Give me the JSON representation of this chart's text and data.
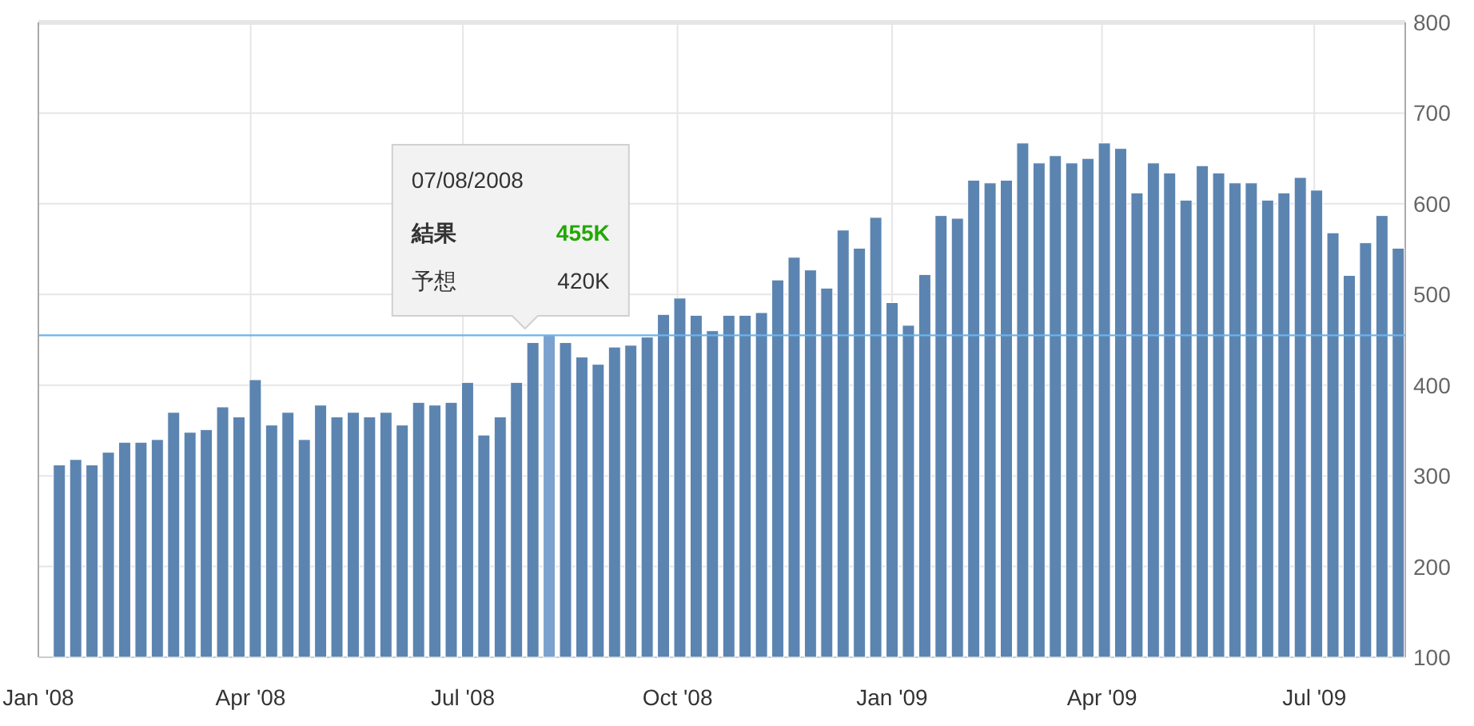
{
  "chart_data": {
    "type": "bar",
    "x": [
      "2008-01-10",
      "2008-01-17",
      "2008-01-24",
      "2008-01-31",
      "2008-02-07",
      "2008-02-14",
      "2008-02-21",
      "2008-02-28",
      "2008-03-06",
      "2008-03-13",
      "2008-03-20",
      "2008-03-27",
      "2008-04-03",
      "2008-04-10",
      "2008-04-17",
      "2008-04-24",
      "2008-05-01",
      "2008-05-08",
      "2008-05-15",
      "2008-05-22",
      "2008-05-29",
      "2008-06-05",
      "2008-06-12",
      "2008-06-19",
      "2008-06-26",
      "2008-07-03",
      "2008-07-10",
      "2008-07-17",
      "2008-07-24",
      "2008-07-31",
      "2008-08-07",
      "2008-08-14",
      "2008-08-21",
      "2008-08-28",
      "2008-09-04",
      "2008-09-11",
      "2008-09-18",
      "2008-09-25",
      "2008-10-02",
      "2008-10-09",
      "2008-10-16",
      "2008-10-23",
      "2008-10-30",
      "2008-11-06",
      "2008-11-13",
      "2008-11-20",
      "2008-11-27",
      "2008-12-04",
      "2008-12-11",
      "2008-12-18",
      "2008-12-25",
      "2009-01-01",
      "2009-01-08",
      "2009-01-15",
      "2009-01-22",
      "2009-01-29",
      "2009-02-05",
      "2009-02-12",
      "2009-02-19",
      "2009-02-26",
      "2009-03-05",
      "2009-03-12",
      "2009-03-19",
      "2009-03-26",
      "2009-04-02",
      "2009-04-09",
      "2009-04-16",
      "2009-04-23",
      "2009-04-30",
      "2009-05-07",
      "2009-05-14",
      "2009-05-21",
      "2009-05-28",
      "2009-06-04",
      "2009-06-11",
      "2009-06-18",
      "2009-06-25",
      "2009-07-02",
      "2009-07-09",
      "2009-07-16",
      "2009-07-23",
      "2009-07-30",
      "2009-08-06"
    ],
    "values": [
      312,
      318,
      312,
      326,
      337,
      337,
      340,
      370,
      348,
      351,
      376,
      365,
      406,
      356,
      370,
      340,
      378,
      365,
      370,
      365,
      370,
      356,
      381,
      378,
      381,
      403,
      345,
      365,
      403,
      447,
      455,
      447,
      431,
      423,
      442,
      444,
      453,
      478,
      496,
      477,
      460,
      477,
      477,
      480,
      516,
      541,
      527,
      507,
      571,
      551,
      585,
      491,
      466,
      522,
      587,
      584,
      626,
      623,
      626,
      667,
      645,
      653,
      645,
      650,
      667,
      661,
      612,
      645,
      634,
      604,
      642,
      634,
      623,
      623,
      604,
      612,
      629,
      615,
      568,
      521,
      557,
      587,
      551
    ],
    "colors": [
      "#5b84b1",
      "#5b84b1",
      "#5b84b1",
      "#5b84b1",
      "#5b84b1",
      "#5b84b1",
      "#5b84b1",
      "#5b84b1",
      "#5b84b1",
      "#5b84b1",
      "#5b84b1",
      "#5b84b1",
      "#5b84b1",
      "#5b84b1",
      "#5b84b1",
      "#5b84b1",
      "#5b84b1",
      "#5b84b1",
      "#5b84b1",
      "#5b84b1",
      "#5b84b1",
      "#5b84b1",
      "#5b84b1",
      "#5b84b1",
      "#5b84b1",
      "#5b84b1",
      "#5b84b1",
      "#5b84b1",
      "#5b84b1",
      "#5b84b1",
      "#7ba2cf",
      "#5b84b1",
      "#5b84b1",
      "#5b84b1",
      "#5b84b1",
      "#5b84b1",
      "#5b84b1",
      "#5b84b1",
      "#5b84b1",
      "#5b84b1",
      "#5b84b1",
      "#5b84b1",
      "#5b84b1",
      "#5b84b1",
      "#5b84b1",
      "#5b84b1",
      "#5b84b1",
      "#5b84b1",
      "#5b84b1",
      "#5b84b1",
      "#5b84b1",
      "#5b84b1",
      "#5b84b1",
      "#5b84b1",
      "#5b84b1",
      "#5b84b1",
      "#5b84b1",
      "#5b84b1",
      "#5b84b1",
      "#5b84b1",
      "#5b84b1",
      "#5b84b1",
      "#5b84b1",
      "#5b84b1",
      "#5b84b1",
      "#5b84b1",
      "#5b84b1",
      "#5b84b1",
      "#5b84b1",
      "#5b84b1",
      "#5b84b1",
      "#5b84b1",
      "#5b84b1",
      "#5b84b1",
      "#5b84b1",
      "#5b84b1",
      "#5b84b1",
      "#5b84b1",
      "#5b84b1",
      "#5b84b1",
      "#5b84b1",
      "#5b84b1",
      "#5b84b1"
    ],
    "xlim": [
      "2008-01-01",
      "2009-08-09"
    ],
    "xticks": [
      {
        "value": "2008-01-01",
        "label": "Jan '08"
      },
      {
        "value": "2008-04-01",
        "label": "Apr '08"
      },
      {
        "value": "2008-07-01",
        "label": "Jul '08"
      },
      {
        "value": "2008-10-01",
        "label": "Oct '08"
      },
      {
        "value": "2009-01-01",
        "label": "Jan '09"
      },
      {
        "value": "2009-04-01",
        "label": "Apr '09"
      },
      {
        "value": "2009-07-01",
        "label": "Jul '09"
      }
    ],
    "ylim": [
      100,
      800
    ],
    "yticks": [
      100,
      200,
      300,
      400,
      500,
      600,
      700,
      800
    ],
    "grid": true,
    "ref_lines": [
      {
        "axis": "y",
        "value": 455,
        "color": "#6fb3ea"
      }
    ],
    "annotations": [
      "07/08/2008",
      "結果",
      "455K",
      "予想",
      "420K"
    ]
  }
}
